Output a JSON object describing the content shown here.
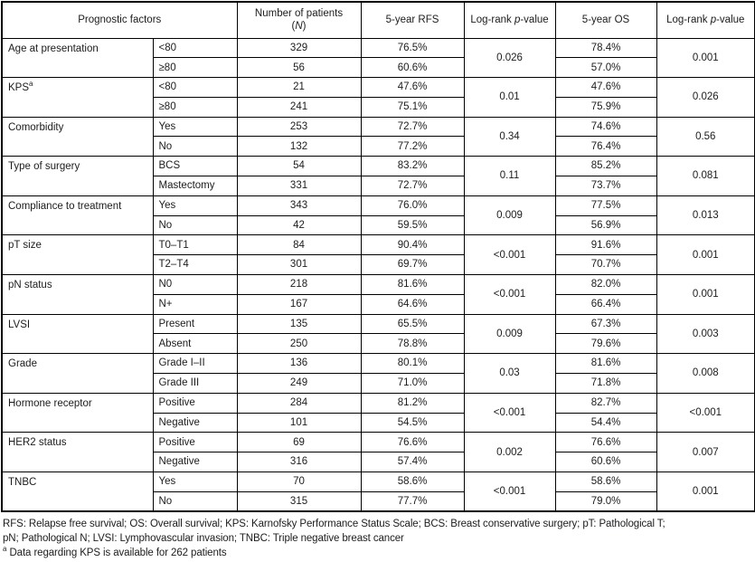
{
  "table": {
    "header": {
      "prognostic": "Prognostic factors",
      "patients_line1": "Number of patients",
      "patients_open": "(",
      "patients_italic": "N",
      "patients_close": ")",
      "rfs": "5-year RFS",
      "logrank_pre": "Log-rank ",
      "logrank_italic": "p",
      "logrank_post": "-value",
      "os": "5-year OS"
    },
    "groups": [
      {
        "factor": "Age at presentation",
        "factor_sup": "",
        "rows": [
          {
            "sub": "<80",
            "n": "329",
            "rfs": "76.5%",
            "os": "78.4%"
          },
          {
            "sub": "≥80",
            "n": "56",
            "rfs": "60.6%",
            "os": "57.0%"
          }
        ],
        "p_rfs": "0.026",
        "p_os": "0.001"
      },
      {
        "factor": "KPS",
        "factor_sup": "a",
        "rows": [
          {
            "sub": "<80",
            "n": "21",
            "rfs": "47.6%",
            "os": "47.6%"
          },
          {
            "sub": "≥80",
            "n": "241",
            "rfs": "75.1%",
            "os": "75.9%"
          }
        ],
        "p_rfs": "0.01",
        "p_os": "0.026"
      },
      {
        "factor": "Comorbidity",
        "factor_sup": "",
        "rows": [
          {
            "sub": "Yes",
            "n": "253",
            "rfs": "72.7%",
            "os": "74.6%"
          },
          {
            "sub": "No",
            "n": "132",
            "rfs": "77.2%",
            "os": "76.4%"
          }
        ],
        "p_rfs": "0.34",
        "p_os": "0.56"
      },
      {
        "factor": "Type of surgery",
        "factor_sup": "",
        "rows": [
          {
            "sub": "BCS",
            "n": "54",
            "rfs": "83.2%",
            "os": "85.2%"
          },
          {
            "sub": "Mastectomy",
            "n": "331",
            "rfs": "72.7%",
            "os": "73.7%"
          }
        ],
        "p_rfs": "0.11",
        "p_os": "0.081"
      },
      {
        "factor": "Compliance to treatment",
        "factor_sup": "",
        "rows": [
          {
            "sub": "Yes",
            "n": "343",
            "rfs": "76.0%",
            "os": "77.5%"
          },
          {
            "sub": "No",
            "n": "42",
            "rfs": "59.5%",
            "os": "56.9%"
          }
        ],
        "p_rfs": "0.009",
        "p_os": "0.013"
      },
      {
        "factor": "pT size",
        "factor_sup": "",
        "rows": [
          {
            "sub": "T0–T1",
            "n": "84",
            "rfs": "90.4%",
            "os": "91.6%"
          },
          {
            "sub": "T2–T4",
            "n": "301",
            "rfs": "69.7%",
            "os": "70.7%"
          }
        ],
        "p_rfs": "<0.001",
        "p_os": "0.001"
      },
      {
        "factor": "pN status",
        "factor_sup": "",
        "rows": [
          {
            "sub": "N0",
            "n": "218",
            "rfs": "81.6%",
            "os": "82.0%"
          },
          {
            "sub": "N+",
            "n": "167",
            "rfs": "64.6%",
            "os": "66.4%"
          }
        ],
        "p_rfs": "<0.001",
        "p_os": "0.001"
      },
      {
        "factor": "LVSI",
        "factor_sup": "",
        "rows": [
          {
            "sub": "Present",
            "n": "135",
            "rfs": "65.5%",
            "os": "67.3%"
          },
          {
            "sub": "Absent",
            "n": "250",
            "rfs": "78.8%",
            "os": "79.6%"
          }
        ],
        "p_rfs": "0.009",
        "p_os": "0.003"
      },
      {
        "factor": "Grade",
        "factor_sup": "",
        "rows": [
          {
            "sub": "Grade I–II",
            "n": "136",
            "rfs": "80.1%",
            "os": "81.6%"
          },
          {
            "sub": "Grade III",
            "n": "249",
            "rfs": "71.0%",
            "os": "71.8%"
          }
        ],
        "p_rfs": "0.03",
        "p_os": "0.008"
      },
      {
        "factor": "Hormone receptor",
        "factor_sup": "",
        "rows": [
          {
            "sub": "Positive",
            "n": "284",
            "rfs": "81.2%",
            "os": "82.7%"
          },
          {
            "sub": "Negative",
            "n": "101",
            "rfs": "54.5%",
            "os": "54.4%"
          }
        ],
        "p_rfs": "<0.001",
        "p_os": "<0.001"
      },
      {
        "factor": "HER2 status",
        "factor_sup": "",
        "rows": [
          {
            "sub": "Positive",
            "n": "69",
            "rfs": "76.6%",
            "os": "76.6%"
          },
          {
            "sub": "Negative",
            "n": "316",
            "rfs": "57.4%",
            "os": "60.6%"
          }
        ],
        "p_rfs": "0.002",
        "p_os": "0.007"
      },
      {
        "factor": "TNBC",
        "factor_sup": "",
        "rows": [
          {
            "sub": "Yes",
            "n": "70",
            "rfs": "58.6%",
            "os": "58.6%"
          },
          {
            "sub": "No",
            "n": "315",
            "rfs": "77.7%",
            "os": "79.0%"
          }
        ],
        "p_rfs": "<0.001",
        "p_os": "0.001"
      }
    ]
  },
  "footnotes": {
    "line1": "RFS: Relapse free survival; OS: Overall survival; KPS: Karnofsky Performance Status Scale; BCS: Breast conservative surgery; pT: Pathological T;",
    "line2": "pN; Pathological N; LVSI: Lymphovascular invasion; TNBC: Triple negative breast cancer",
    "note_sup": "a",
    "note_text": " Data regarding KPS is available for 262 patients"
  },
  "colors": {
    "text": "#1c1c1e",
    "border": "#000000",
    "background": "#ffffff"
  }
}
